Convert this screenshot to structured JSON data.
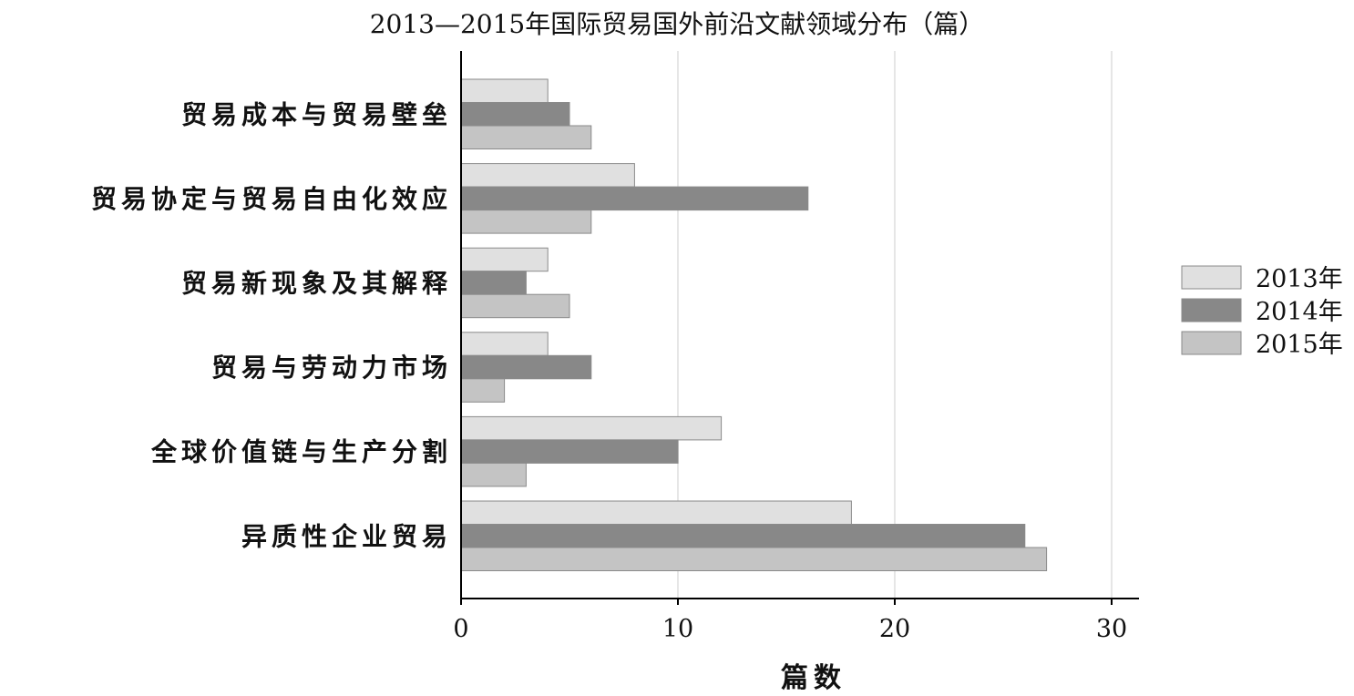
{
  "chart_data": {
    "type": "bar",
    "orientation": "horizontal",
    "title": "2013—2015年国际贸易国外前沿文献领域分布（篇）",
    "xlabel": "篇数",
    "ylabel": "",
    "xlim": [
      0,
      31
    ],
    "xticks": [
      0,
      10,
      20,
      30
    ],
    "grid": "vertical",
    "legend_position": "right",
    "categories": [
      "贸易成本与贸易壁垒",
      "贸易协定与贸易自由化效应",
      "贸易新现象及其解释",
      "贸易与劳动力市场",
      "全球价值链与生产分割",
      "异质性企业贸易"
    ],
    "series": [
      {
        "name": "2013年",
        "color": "#e0e0e0",
        "values": [
          4,
          8,
          4,
          4,
          12,
          18
        ]
      },
      {
        "name": "2014年",
        "color": "#888888",
        "values": [
          5,
          16,
          3,
          6,
          10,
          26
        ]
      },
      {
        "name": "2015年",
        "color": "#c4c4c4",
        "values": [
          6,
          6,
          5,
          2,
          3,
          27
        ]
      }
    ]
  }
}
